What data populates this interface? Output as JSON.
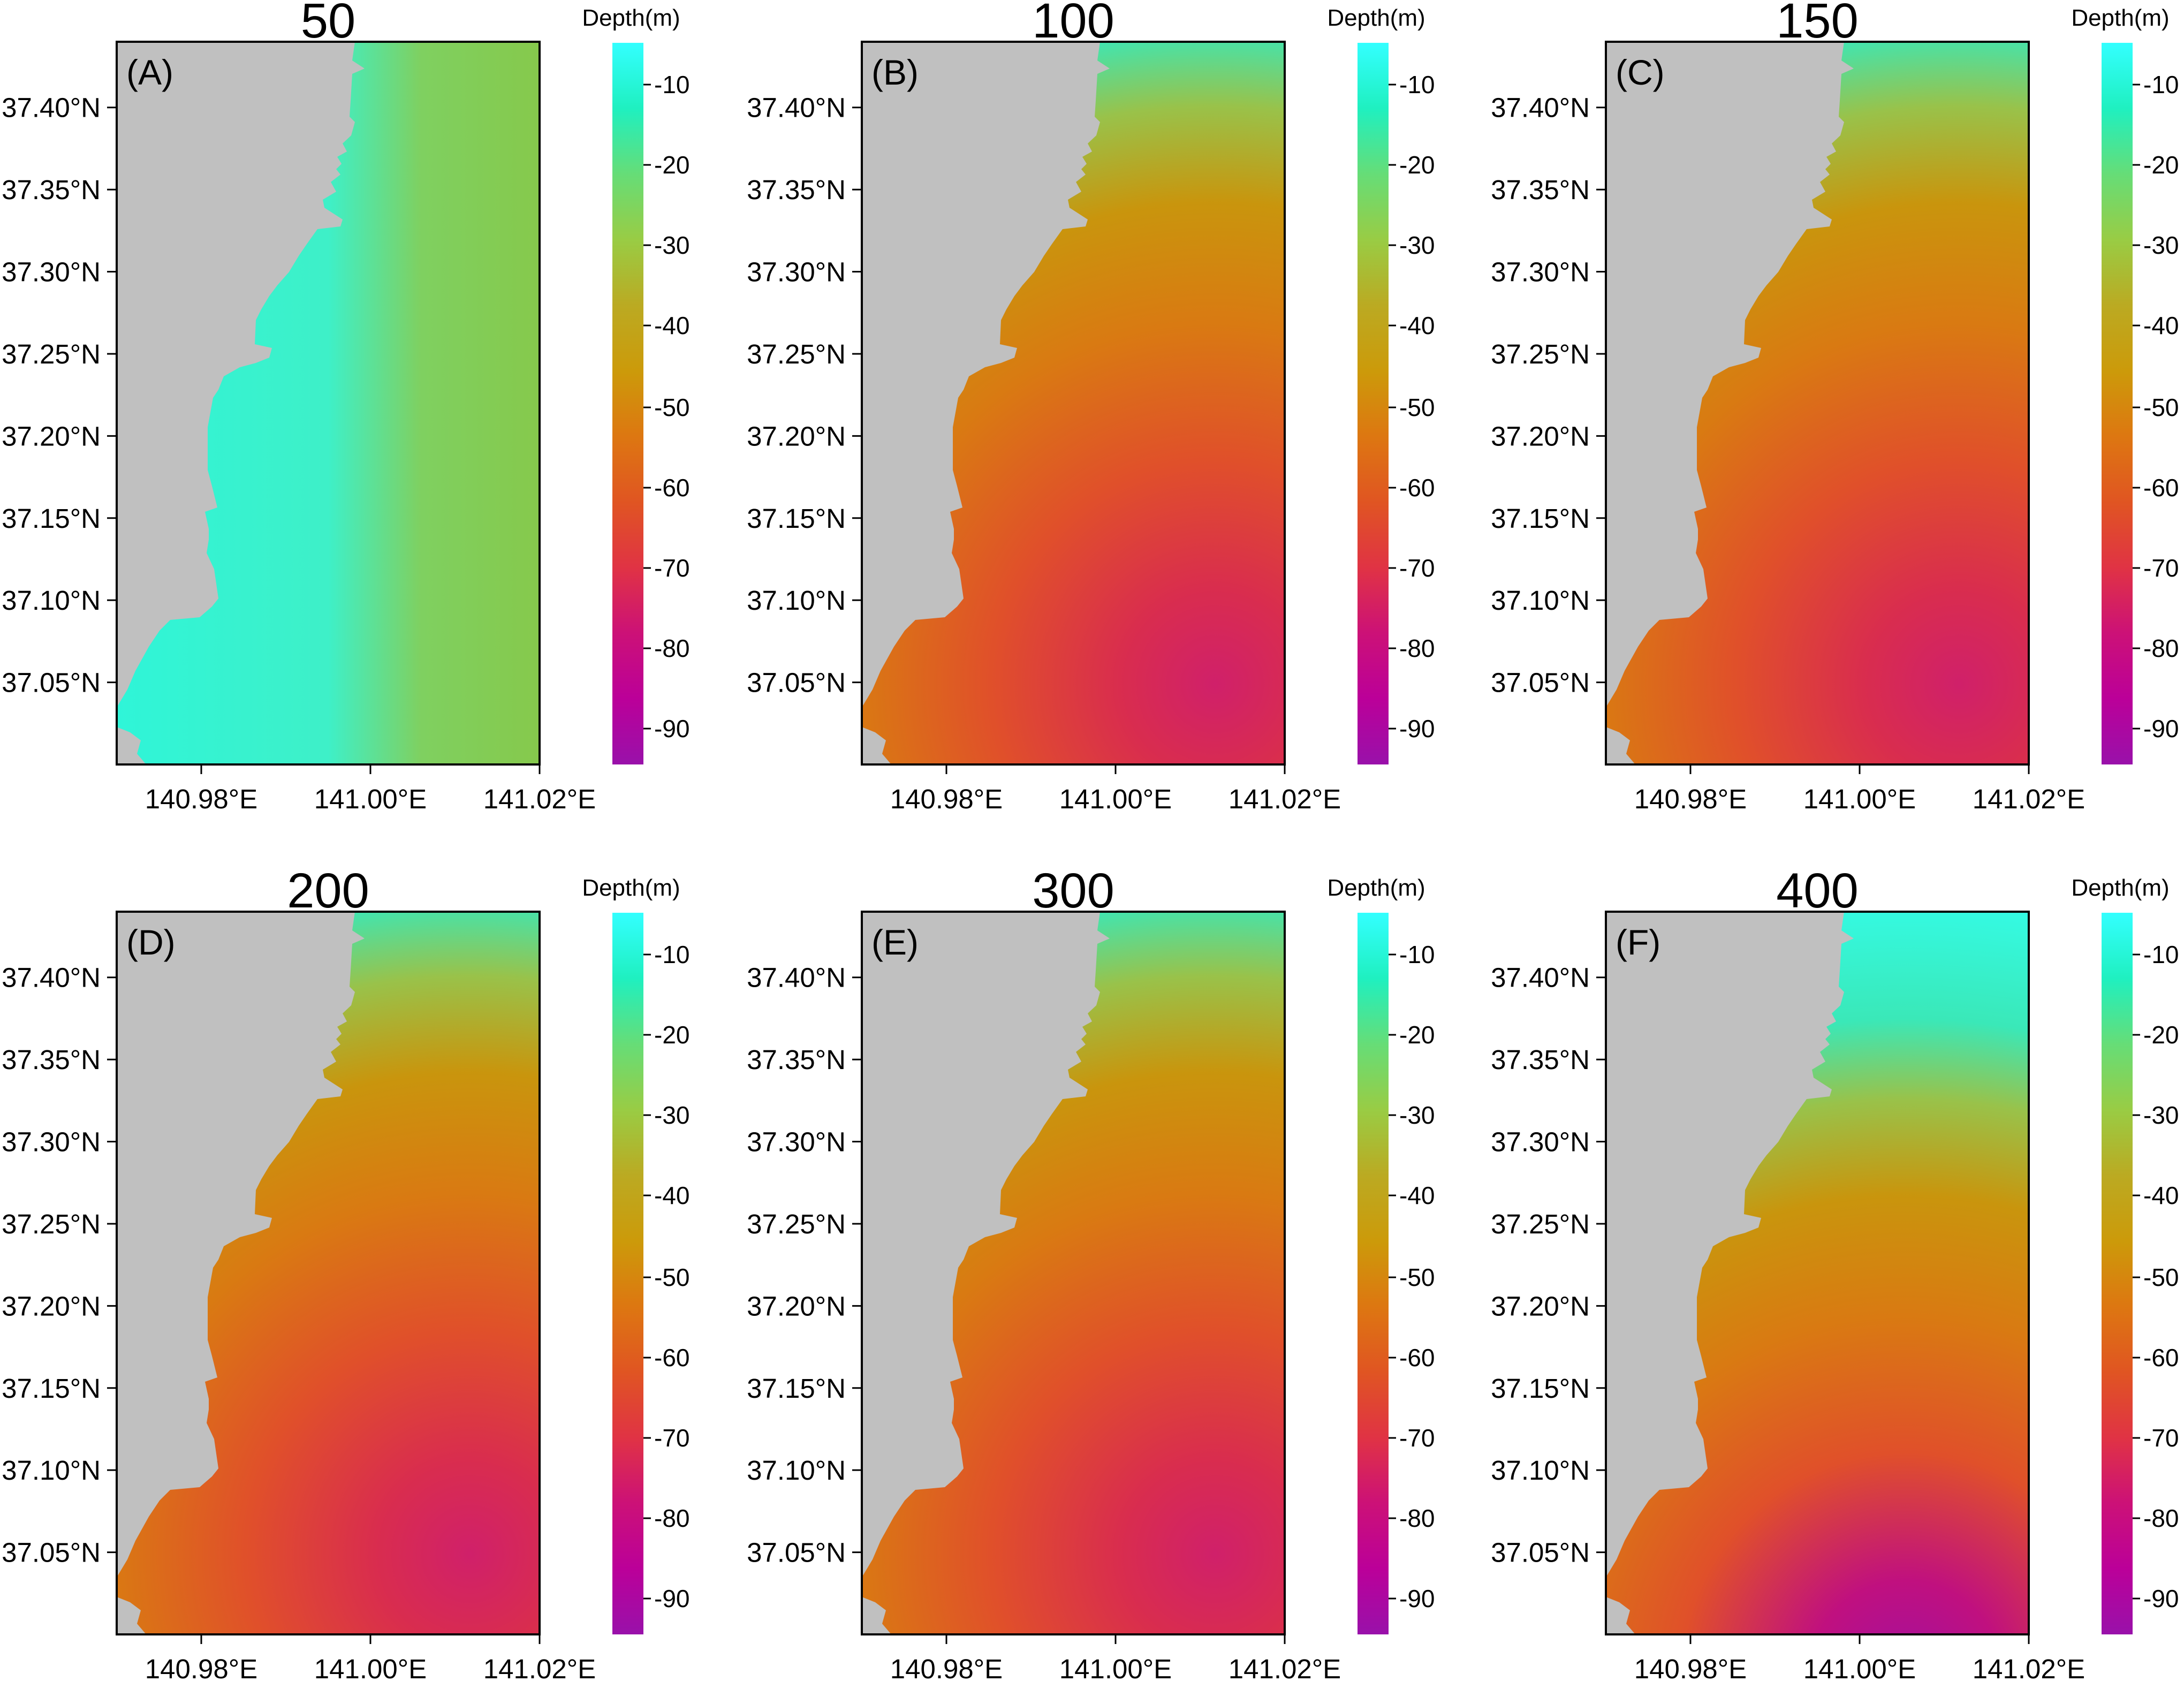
{
  "colorbar_stops": [
    "#33ffff",
    "#1ff0c0",
    "#66dd77",
    "#99cc44",
    "#bbaa22",
    "#cc9a0a",
    "#dd7711",
    "#e05522",
    "#e03344",
    "#cc1177",
    "#bb0099",
    "#9911aa"
  ],
  "colors": {
    "land": "#c0c0c0",
    "frame": "#000000"
  },
  "x_ticks": [
    {
      "label": "140.98°E",
      "value": 140.98
    },
    {
      "label": "141.00°E",
      "value": 141.0
    },
    {
      "label": "141.02°E",
      "value": 141.02
    }
  ],
  "y_ticks": [
    {
      "label": "37.40°N",
      "value": 37.4
    },
    {
      "label": "37.35°N",
      "value": 37.35
    },
    {
      "label": "37.30°N",
      "value": 37.3
    },
    {
      "label": "37.25°N",
      "value": 37.25
    },
    {
      "label": "37.20°N",
      "value": 37.2
    },
    {
      "label": "37.15°N",
      "value": 37.15
    },
    {
      "label": "37.10°N",
      "value": 37.1
    },
    {
      "label": "37.05°N",
      "value": 37.05
    }
  ],
  "panels": [
    {
      "title": "50",
      "label": "(A)",
      "colorbar": {
        "title": "Depth(m)",
        "ticks": [
          "-10",
          "-20",
          "-30",
          "-40",
          "-50",
          "-60",
          "-70",
          "-80",
          "-90"
        ]
      },
      "offshore_pattern": "uniform-green"
    },
    {
      "title": "100",
      "label": "(B)",
      "colorbar": {
        "title": "Depth(m)",
        "ticks": [
          "-10",
          "-20",
          "-30",
          "-40",
          "-50",
          "-60",
          "-70",
          "-80",
          "-90"
        ]
      },
      "offshore_pattern": "deepening-southeast"
    },
    {
      "title": "150",
      "label": "(C)",
      "colorbar": {
        "title": "Depth(m)",
        "ticks": [
          "-10",
          "-20",
          "-30",
          "-40",
          "-50",
          "-60",
          "-70",
          "-80",
          "-90"
        ]
      },
      "offshore_pattern": "deepening-southeast"
    },
    {
      "title": "200",
      "label": "(D)",
      "colorbar": {
        "title": "Depth(m)",
        "ticks": [
          "-10",
          "-20",
          "-30",
          "-40",
          "-50",
          "-60",
          "-70",
          "-80",
          "-90"
        ]
      },
      "offshore_pattern": "deepening-southeast"
    },
    {
      "title": "300",
      "label": "(E)",
      "colorbar": {
        "title": "Depth(m)",
        "ticks": [
          "-10",
          "-20",
          "-30",
          "-40",
          "-50",
          "-60",
          "-70",
          "-80",
          "-90"
        ]
      },
      "offshore_pattern": "deepening-southeast"
    },
    {
      "title": "400",
      "label": "(F)",
      "colorbar": {
        "title": "Depth(m)",
        "ticks": [
          "-10",
          "-20",
          "-30",
          "-40",
          "-50",
          "-60",
          "-70",
          "-80",
          "-90"
        ]
      },
      "offshore_pattern": "deepening-southeast-strong"
    }
  ]
}
